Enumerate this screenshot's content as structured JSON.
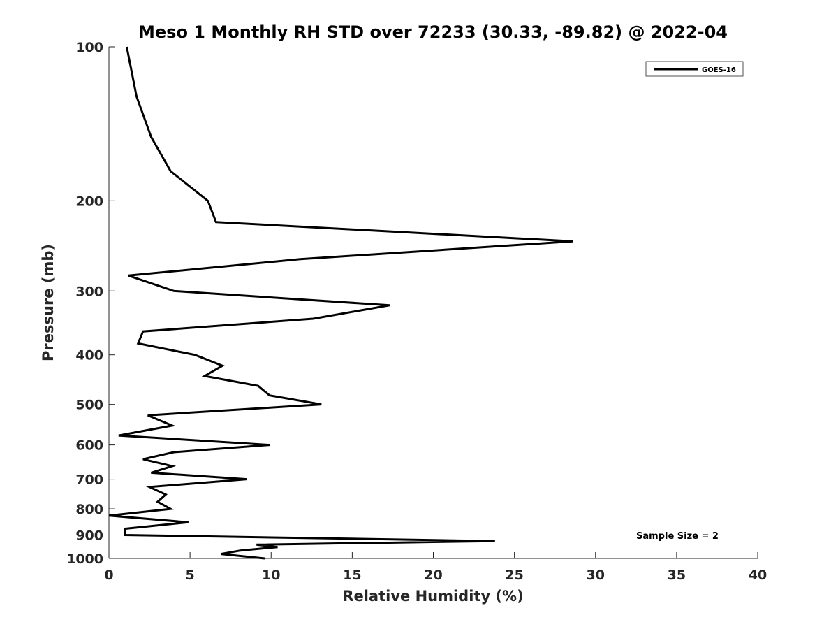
{
  "chart_data": {
    "type": "line",
    "title": "Meso 1 Monthly RH STD over 72233 (30.33, -89.82) @ 2022-04",
    "xlabel": "Relative Humidity (%)",
    "ylabel": "Pressure (mb)",
    "xlim": [
      0,
      40
    ],
    "ylim": [
      100,
      1000
    ],
    "yscale": "log",
    "yreversed": true,
    "grid": false,
    "legend_position": "top-right",
    "xticks": [
      0,
      5,
      10,
      15,
      20,
      25,
      30,
      35,
      40
    ],
    "xtick_labels": [
      "0",
      "5",
      "10",
      "15",
      "20",
      "25",
      "30",
      "35",
      "40"
    ],
    "yticks": [
      100,
      200,
      300,
      400,
      500,
      600,
      700,
      800,
      900,
      1000
    ],
    "ytick_labels": [
      "100",
      "200",
      "300",
      "400",
      "500",
      "600",
      "700",
      "800",
      "900",
      "1000"
    ],
    "series": [
      {
        "name": "GOES-16",
        "color": "#000000",
        "points": [
          [
            1.1,
            100
          ],
          [
            1.7,
            125
          ],
          [
            2.6,
            150
          ],
          [
            3.8,
            175
          ],
          [
            6.1,
            200
          ],
          [
            6.6,
            220
          ],
          [
            28.6,
            240
          ],
          [
            11.8,
            260
          ],
          [
            1.2,
            280
          ],
          [
            4.0,
            300
          ],
          [
            17.3,
            320
          ],
          [
            12.6,
            340
          ],
          [
            2.1,
            360
          ],
          [
            1.8,
            380
          ],
          [
            5.3,
            400
          ],
          [
            7.0,
            420
          ],
          [
            5.9,
            440
          ],
          [
            9.2,
            460
          ],
          [
            9.9,
            480
          ],
          [
            13.1,
            500
          ],
          [
            2.4,
            525
          ],
          [
            3.9,
            550
          ],
          [
            0.6,
            575
          ],
          [
            9.9,
            600
          ],
          [
            4.0,
            620
          ],
          [
            2.1,
            640
          ],
          [
            3.9,
            660
          ],
          [
            2.6,
            680
          ],
          [
            8.5,
            700
          ],
          [
            2.5,
            725
          ],
          [
            3.5,
            750
          ],
          [
            3.0,
            775
          ],
          [
            3.8,
            800
          ],
          [
            0.0,
            825
          ],
          [
            4.9,
            850
          ],
          [
            1.0,
            875
          ],
          [
            1.0,
            900
          ],
          [
            23.8,
            925
          ],
          [
            9.1,
            940
          ],
          [
            10.4,
            950
          ],
          [
            8.1,
            965
          ],
          [
            6.9,
            980
          ],
          [
            9.6,
            1000
          ]
        ]
      }
    ],
    "annotation": "Sample Size = 2"
  }
}
